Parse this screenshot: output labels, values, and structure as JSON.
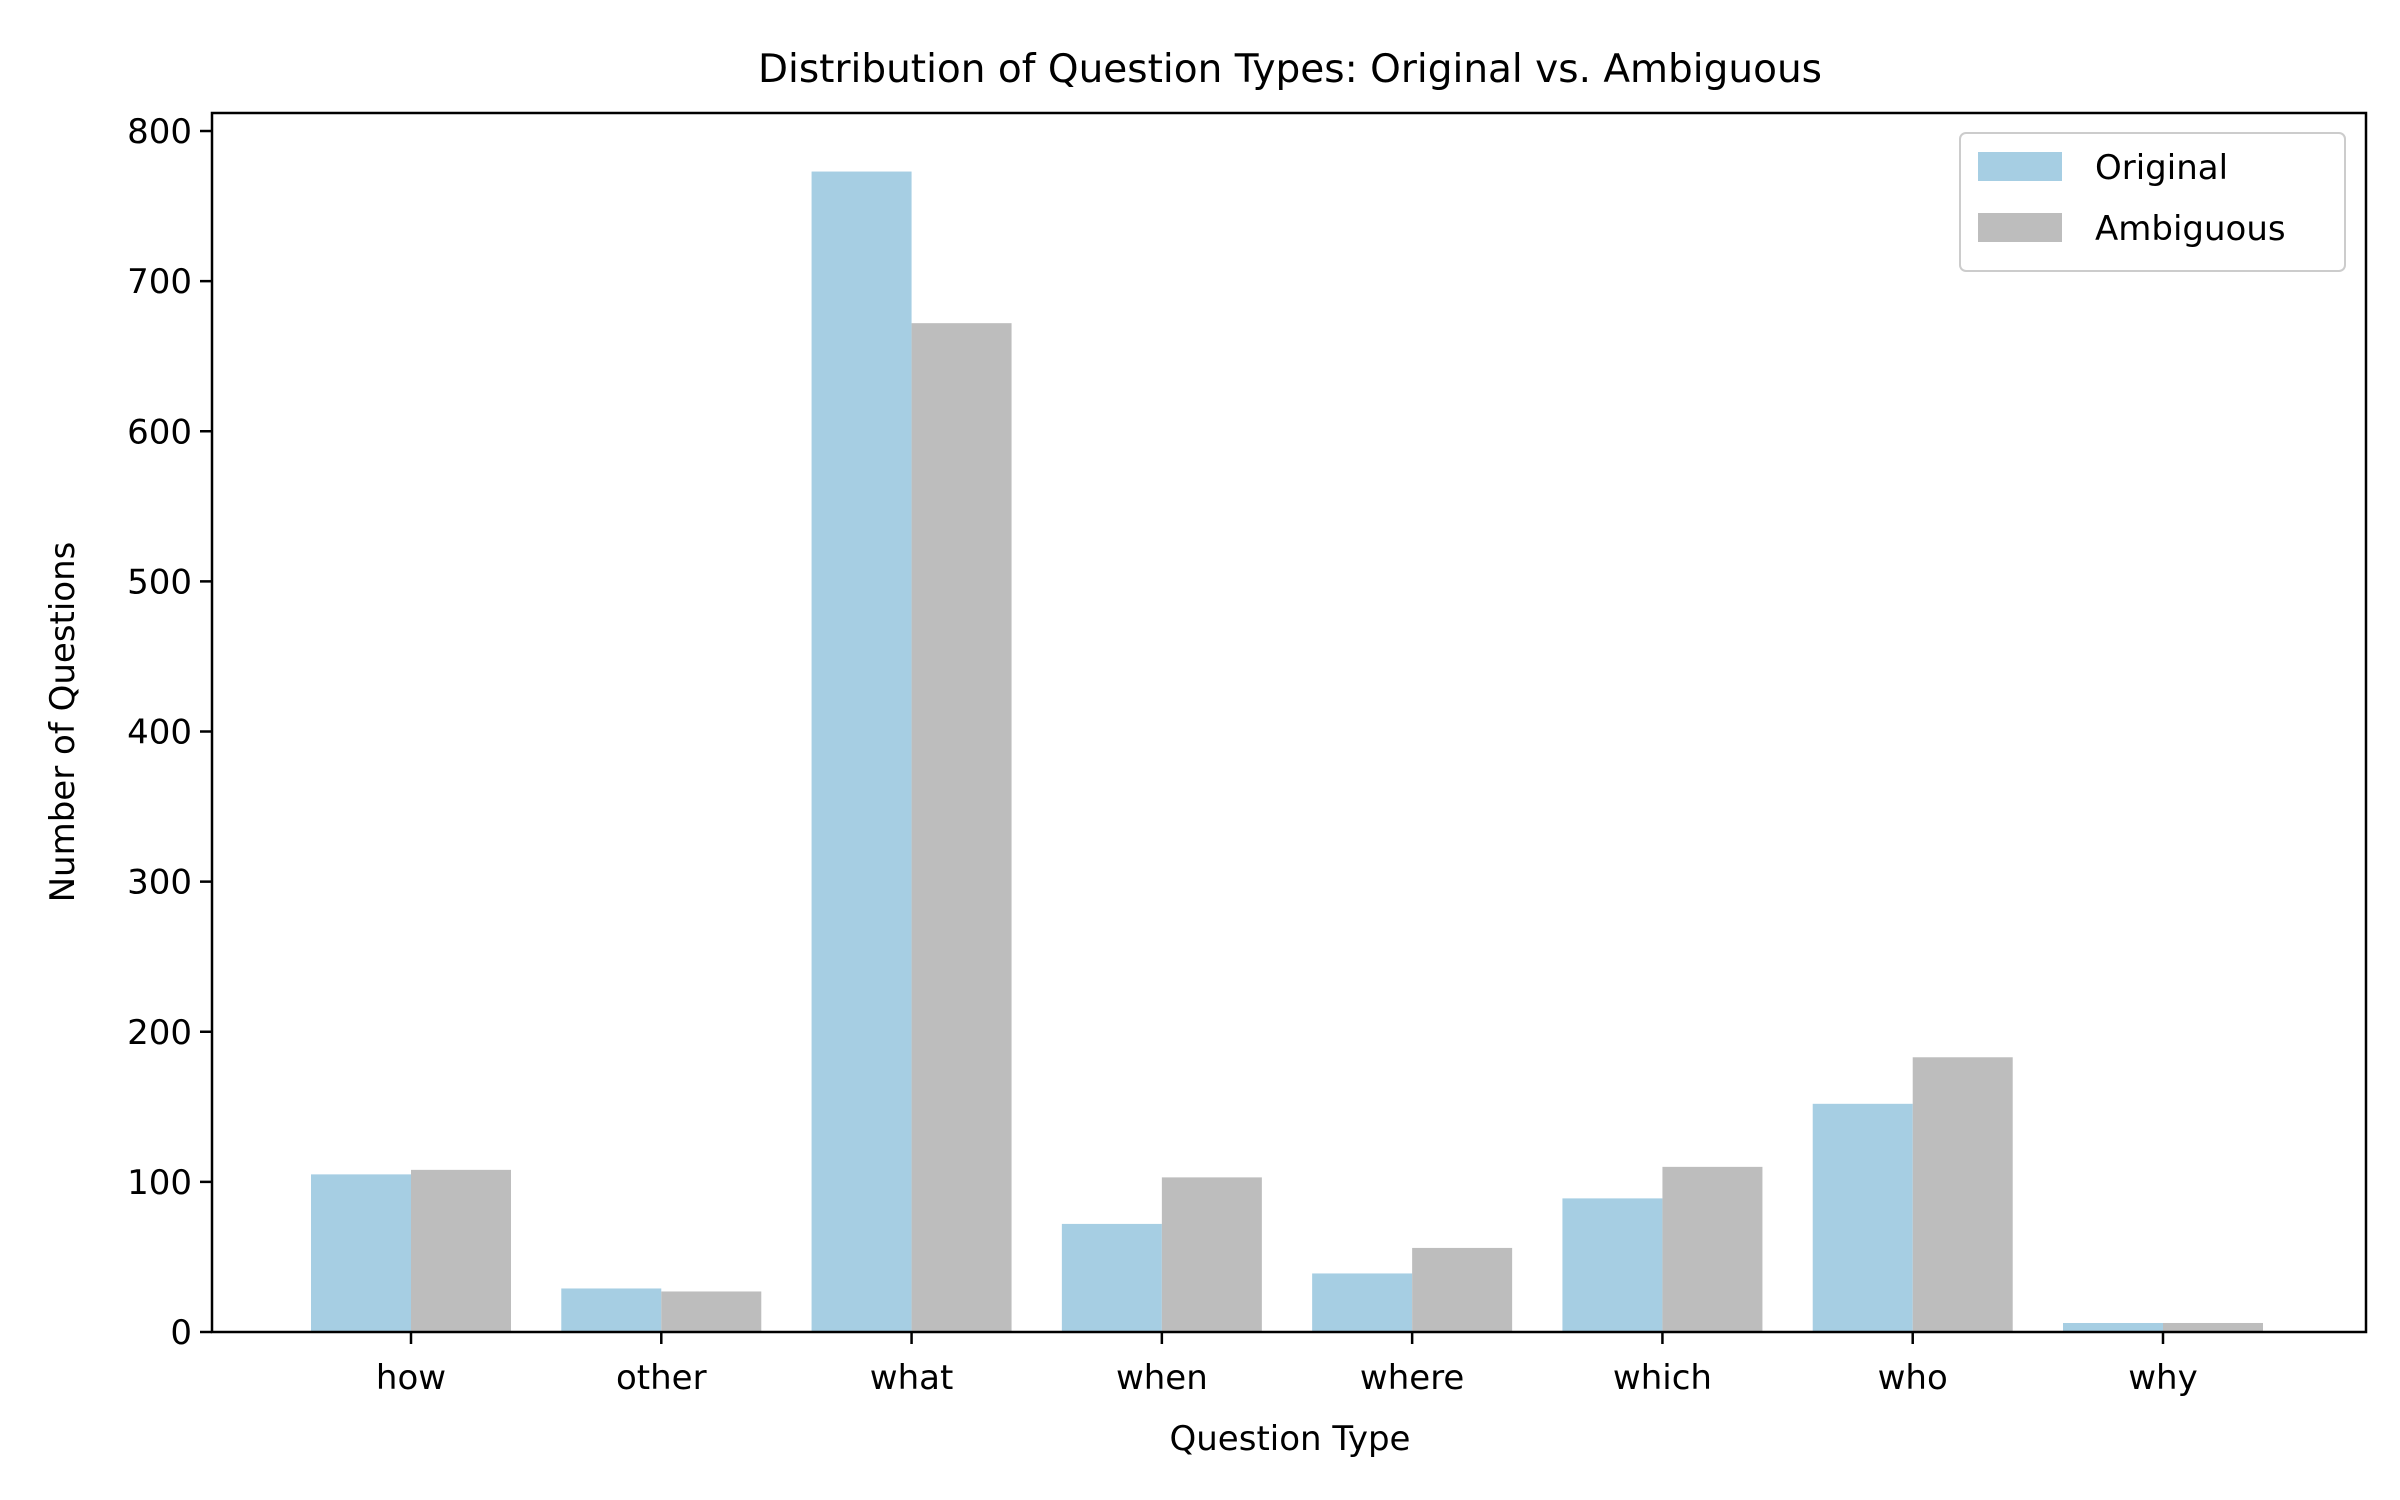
{
  "chart_data": {
    "type": "bar",
    "title": "Distribution of Question Types: Original vs. Ambiguous",
    "xlabel": "Question Type",
    "ylabel": "Number of Questions",
    "categories": [
      "how",
      "other",
      "what",
      "when",
      "where",
      "which",
      "who",
      "why"
    ],
    "series": [
      {
        "name": "Original",
        "color": "#a6cee3",
        "values": [
          105,
          29,
          773,
          72,
          39,
          89,
          152,
          6
        ]
      },
      {
        "name": "Ambiguous",
        "color": "#bdbdbd",
        "values": [
          108,
          27,
          672,
          103,
          56,
          110,
          183,
          6
        ]
      }
    ],
    "ylim": [
      0,
      812
    ],
    "yticks": [
      0,
      100,
      200,
      300,
      400,
      500,
      600,
      700,
      800
    ],
    "grid": false,
    "legend": "top-right"
  }
}
